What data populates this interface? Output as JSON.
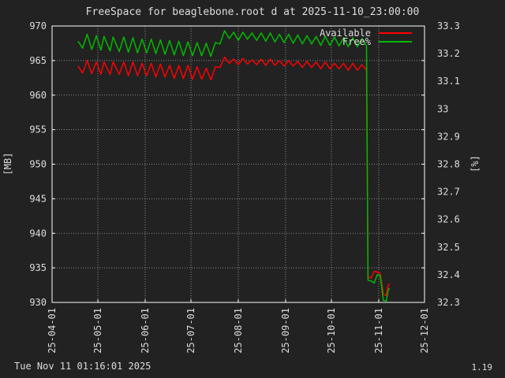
{
  "footer": {
    "timestamp": "Tue Nov 11 01:16:01 2025",
    "version": "1.19"
  },
  "colors": {
    "background": "#222222",
    "plot": "#222222",
    "axis": "#ffffff",
    "grid": "#aaaaaa",
    "text": "#dddddd"
  },
  "chart_data": {
    "type": "line",
    "title": "FreeSpace for beaglebone.root d at 2025-11-10_23:00:00",
    "ylabel": "[MB]",
    "y2label": "[%]",
    "xlim": [
      "2025-04-01",
      "2025-12-01"
    ],
    "ylim": [
      930,
      970
    ],
    "y2lim": [
      32.3,
      33.3
    ],
    "grid": true,
    "legend_position": "top-right",
    "x_ticks": [
      "25-04-01",
      "25-05-01",
      "25-06-01",
      "25-07-01",
      "25-08-01",
      "25-09-01",
      "25-10-01",
      "25-11-01",
      "25-12-01"
    ],
    "y_ticks": [
      930,
      935,
      940,
      945,
      950,
      955,
      960,
      965,
      970
    ],
    "y2_ticks": [
      "32.3",
      "32.4",
      "32.5",
      "32.6",
      "32.7",
      "32.8",
      "32.9",
      "33",
      "33.1",
      "33.2",
      "33.3"
    ],
    "series": [
      {
        "name": "Available",
        "color": "#ff0000",
        "axis": "left",
        "x": [
          "2025-04-18",
          "2025-04-21",
          "2025-04-24",
          "2025-04-27",
          "2025-04-30",
          "2025-05-03",
          "2025-05-05",
          "2025-05-09",
          "2025-05-11",
          "2025-05-15",
          "2025-05-18",
          "2025-05-21",
          "2025-05-24",
          "2025-05-27",
          "2025-05-30",
          "2025-06-02",
          "2025-06-05",
          "2025-06-08",
          "2025-06-11",
          "2025-06-14",
          "2025-06-17",
          "2025-06-20",
          "2025-06-23",
          "2025-06-26",
          "2025-06-29",
          "2025-07-02",
          "2025-07-05",
          "2025-07-08",
          "2025-07-11",
          "2025-07-14",
          "2025-07-17",
          "2025-07-20",
          "2025-07-23",
          "2025-07-26",
          "2025-07-29",
          "2025-08-01",
          "2025-08-04",
          "2025-08-07",
          "2025-08-10",
          "2025-08-13",
          "2025-08-16",
          "2025-08-19",
          "2025-08-22",
          "2025-08-25",
          "2025-08-28",
          "2025-08-31",
          "2025-09-03",
          "2025-09-06",
          "2025-09-09",
          "2025-09-12",
          "2025-09-15",
          "2025-09-18",
          "2025-09-21",
          "2025-09-24",
          "2025-09-27",
          "2025-09-30",
          "2025-10-03",
          "2025-10-06",
          "2025-10-09",
          "2025-10-12",
          "2025-10-15",
          "2025-10-18",
          "2025-10-21",
          "2025-10-24",
          "2025-10-25",
          "2025-10-27",
          "2025-10-29",
          "2025-10-31",
          "2025-11-02",
          "2025-11-04",
          "2025-11-06",
          "2025-11-07",
          "2025-11-08"
        ],
        "values": [
          964.2,
          963.2,
          965.0,
          963.1,
          964.8,
          963.0,
          964.8,
          963.0,
          964.8,
          963.0,
          964.8,
          962.8,
          964.8,
          962.8,
          964.6,
          962.8,
          964.6,
          962.6,
          964.5,
          962.6,
          964.3,
          962.4,
          964.3,
          962.4,
          964.3,
          962.3,
          964.1,
          962.3,
          963.9,
          962.2,
          964.1,
          964.0,
          965.5,
          964.6,
          965.2,
          964.4,
          965.3,
          964.5,
          965.1,
          964.4,
          965.2,
          964.3,
          965.2,
          964.3,
          965.0,
          964.2,
          965.0,
          964.2,
          964.9,
          964.0,
          964.9,
          964.0,
          964.8,
          963.8,
          964.8,
          963.8,
          964.6,
          963.8,
          964.6,
          963.6,
          964.6,
          963.6,
          964.4,
          963.6,
          933.7,
          933.5,
          934.5,
          934.4,
          934.2,
          931.2,
          931.0,
          932.3,
          932.7
        ]
      },
      {
        "name": "Free%",
        "color": "#00bb00",
        "axis": "left",
        "x": [
          "2025-04-18",
          "2025-04-21",
          "2025-04-24",
          "2025-04-27",
          "2025-04-30",
          "2025-05-03",
          "2025-05-05",
          "2025-05-09",
          "2025-05-11",
          "2025-05-15",
          "2025-05-18",
          "2025-05-21",
          "2025-05-24",
          "2025-05-27",
          "2025-05-30",
          "2025-06-02",
          "2025-06-05",
          "2025-06-08",
          "2025-06-11",
          "2025-06-14",
          "2025-06-17",
          "2025-06-20",
          "2025-06-23",
          "2025-06-26",
          "2025-06-29",
          "2025-07-02",
          "2025-07-05",
          "2025-07-08",
          "2025-07-11",
          "2025-07-14",
          "2025-07-17",
          "2025-07-20",
          "2025-07-23",
          "2025-07-26",
          "2025-07-29",
          "2025-08-01",
          "2025-08-04",
          "2025-08-07",
          "2025-08-10",
          "2025-08-13",
          "2025-08-16",
          "2025-08-19",
          "2025-08-22",
          "2025-08-25",
          "2025-08-28",
          "2025-08-31",
          "2025-09-03",
          "2025-09-06",
          "2025-09-09",
          "2025-09-12",
          "2025-09-15",
          "2025-09-18",
          "2025-09-21",
          "2025-09-24",
          "2025-09-27",
          "2025-09-30",
          "2025-10-03",
          "2025-10-06",
          "2025-10-09",
          "2025-10-12",
          "2025-10-15",
          "2025-10-18",
          "2025-10-21",
          "2025-10-24",
          "2025-10-25",
          "2025-10-27",
          "2025-10-29",
          "2025-10-31",
          "2025-11-02",
          "2025-11-04",
          "2025-11-06",
          "2025-11-07",
          "2025-11-08"
        ],
        "values": [
          967.8,
          966.8,
          968.8,
          966.6,
          968.6,
          966.5,
          968.5,
          966.4,
          968.4,
          966.3,
          968.4,
          966.2,
          968.3,
          966.1,
          968.1,
          966.1,
          968.1,
          966.0,
          968.0,
          965.9,
          967.9,
          965.8,
          967.8,
          965.7,
          967.7,
          965.7,
          967.6,
          965.7,
          967.5,
          965.6,
          967.6,
          967.4,
          969.3,
          968.2,
          969.1,
          967.9,
          969.1,
          968.1,
          969.0,
          967.9,
          969.0,
          967.8,
          969.0,
          967.7,
          968.8,
          967.6,
          968.8,
          967.5,
          968.7,
          967.4,
          968.6,
          967.4,
          968.5,
          967.2,
          968.5,
          967.2,
          968.4,
          967.1,
          968.3,
          967.0,
          968.3,
          967.0,
          968.2,
          967.1,
          933.2,
          933.1,
          932.8,
          934.0,
          933.9,
          930.3,
          930.2,
          931.6,
          932.1
        ]
      }
    ]
  }
}
